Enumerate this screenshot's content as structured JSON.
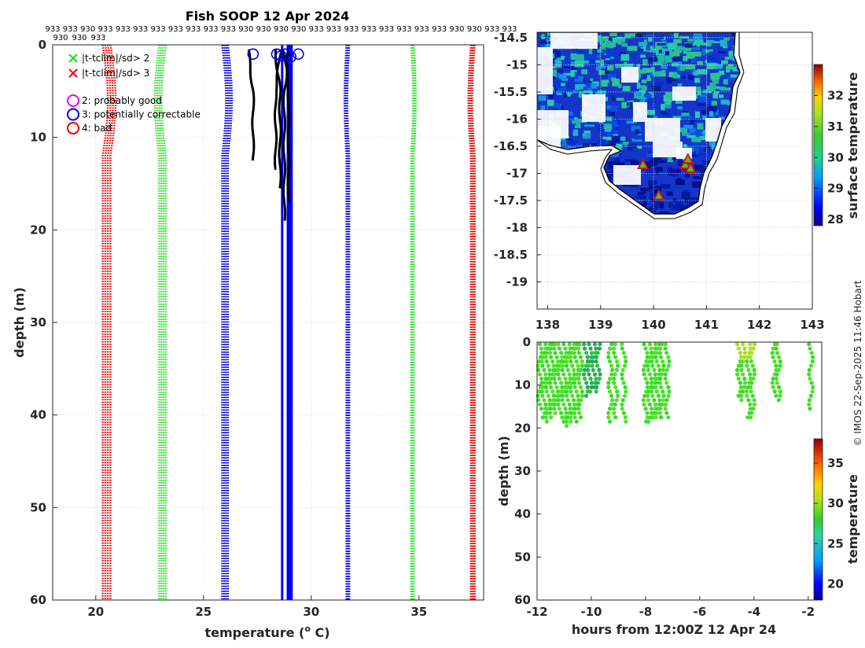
{
  "chart_data": [
    {
      "type": "line",
      "name": "profile-panel",
      "title": "Fish SOOP 12 Apr 2024",
      "xlabel": "temperature (",
      "xlabel_sup": "o",
      "xlabel_tail": " C)",
      "ylabel": "depth (m)",
      "xlim": [
        18,
        38
      ],
      "ylim": [
        60,
        0
      ],
      "xticks": [
        20,
        25,
        30,
        35
      ],
      "yticks": [
        0,
        10,
        20,
        30,
        40,
        50,
        60
      ],
      "platform_codes_row1": [
        "933",
        "933",
        "930",
        "933",
        "933",
        "933",
        "933",
        "933",
        "933",
        "933",
        "933",
        "930",
        "930",
        "930",
        "930",
        "933",
        "933",
        "933",
        "933",
        "933",
        "933",
        "933",
        "933",
        "930",
        "930",
        "933",
        "933"
      ],
      "platform_codes_row2": [
        "930",
        "930",
        "933"
      ],
      "legend": {
        "crosses": [
          {
            "label": "|t-tclim|/sd> 2",
            "color": "#22dd22"
          },
          {
            "label": "|t-tclim|/sd> 3",
            "color": "#ee1111"
          }
        ],
        "circles": [
          {
            "label": "2: probably good",
            "color": "#ee00ee"
          },
          {
            "label": "3: potentially correctable",
            "color": "#0000dd"
          },
          {
            "label": "4: bad",
            "color": "#ee0000"
          }
        ]
      },
      "climatology_bands": [
        {
          "name": "red-low",
          "color": "#dd0000",
          "base": 20.5,
          "spread": 0.4
        },
        {
          "name": "green-low",
          "color": "#33dd33",
          "base": 23.1,
          "spread": 0.35
        },
        {
          "name": "blue-low",
          "color": "#0000cc",
          "base": 26.0,
          "spread": 0.3
        },
        {
          "name": "blue-high",
          "color": "#0000cc",
          "base": 31.7,
          "spread": 0.15
        },
        {
          "name": "green-high",
          "color": "#33dd33",
          "base": 34.7,
          "spread": 0.15
        },
        {
          "name": "red-high",
          "color": "#dd0000",
          "base": 37.5,
          "spread": 0.2
        }
      ],
      "profiles": [
        {
          "t": 27.3,
          "maxdepth": 12.5
        },
        {
          "t": 28.35,
          "maxdepth": 13.5
        },
        {
          "t": 28.55,
          "maxdepth": 15.5
        },
        {
          "t": 28.75,
          "maxdepth": 19
        },
        {
          "t": 28.95,
          "maxdepth": 17
        }
      ],
      "flag_circles": [
        {
          "t": 27.3,
          "d": 1
        },
        {
          "t": 28.4,
          "d": 1
        },
        {
          "t": 28.6,
          "d": 1.2
        },
        {
          "t": 28.8,
          "d": 1
        },
        {
          "t": 29.05,
          "d": 1.3
        },
        {
          "t": 29.4,
          "d": 1
        }
      ],
      "flag_vlines": [
        {
          "t": 28.65
        },
        {
          "t": 28.95
        },
        {
          "t": 29.05
        }
      ]
    },
    {
      "type": "heatmap",
      "name": "sst-map",
      "colorbar_label": "surface temperature",
      "colorbar_ticks": [
        28,
        29,
        30,
        31,
        32
      ],
      "colorbar_range": [
        27.8,
        33.0
      ],
      "xlim": [
        137.8,
        143.0
      ],
      "ylim": [
        -19.5,
        -14.4
      ],
      "xticks": [
        138,
        139,
        140,
        141,
        142,
        143
      ],
      "yticks": [
        -14.5,
        -15,
        -15.5,
        -16,
        -16.5,
        -17,
        -17.5,
        -18,
        -18.5,
        -19
      ],
      "stations": [
        {
          "lon": 139.8,
          "lat": -16.85
        },
        {
          "lon": 140.1,
          "lat": -17.42
        },
        {
          "lon": 140.6,
          "lat": -16.85
        },
        {
          "lon": 140.65,
          "lat": -16.75
        },
        {
          "lon": 140.7,
          "lat": -16.92
        }
      ]
    },
    {
      "type": "scatter",
      "name": "time-depth",
      "xlabel": "hours from 12:00Z 12 Apr 24",
      "ylabel": "depth (m)",
      "colorbar_label": "temperature",
      "colorbar_ticks": [
        20,
        25,
        30,
        35
      ],
      "colorbar_range": [
        18,
        38
      ],
      "xlim": [
        -12,
        -1.5
      ],
      "ylim": [
        60,
        0
      ],
      "xticks": [
        -12,
        -10,
        -8,
        -6,
        -4,
        -2
      ],
      "yticks": [
        0,
        10,
        20,
        30,
        40,
        50,
        60
      ],
      "casts": [
        {
          "hour": -11.9,
          "maxdepth": 15
        },
        {
          "hour": -11.75,
          "maxdepth": 17
        },
        {
          "hour": -11.6,
          "maxdepth": 18
        },
        {
          "hour": -11.45,
          "maxdepth": 17
        },
        {
          "hour": -11.3,
          "maxdepth": 16
        },
        {
          "hour": -11.15,
          "maxdepth": 17
        },
        {
          "hour": -11.0,
          "maxdepth": 18
        },
        {
          "hour": -10.85,
          "maxdepth": 19
        },
        {
          "hour": -10.7,
          "maxdepth": 18
        },
        {
          "hour": -10.55,
          "maxdepth": 18
        },
        {
          "hour": -10.4,
          "maxdepth": 17
        },
        {
          "hour": -10.2,
          "maxdepth": 12
        },
        {
          "hour": -10.05,
          "maxdepth": 11
        },
        {
          "hour": -9.9,
          "maxdepth": 10
        },
        {
          "hour": -9.75,
          "maxdepth": 11
        },
        {
          "hour": -9.3,
          "maxdepth": 18
        },
        {
          "hour": -9.1,
          "maxdepth": 17
        },
        {
          "hour": -8.8,
          "maxdepth": 18
        },
        {
          "hour": -8.0,
          "maxdepth": 18
        },
        {
          "hour": -7.85,
          "maxdepth": 18
        },
        {
          "hour": -7.7,
          "maxdepth": 17
        },
        {
          "hour": -7.55,
          "maxdepth": 17
        },
        {
          "hour": -7.4,
          "maxdepth": 17
        },
        {
          "hour": -7.2,
          "maxdepth": 17
        },
        {
          "hour": -4.55,
          "maxdepth": 12
        },
        {
          "hour": -4.4,
          "maxdepth": 13
        },
        {
          "hour": -4.2,
          "maxdepth": 17
        },
        {
          "hour": -4.05,
          "maxdepth": 17
        },
        {
          "hour": -3.25,
          "maxdepth": 12
        },
        {
          "hour": -3.1,
          "maxdepth": 13
        },
        {
          "hour": -1.9,
          "maxdepth": 15
        }
      ],
      "credit": "© IMOS 22-Sep-2025 11:46 Hobart"
    }
  ]
}
